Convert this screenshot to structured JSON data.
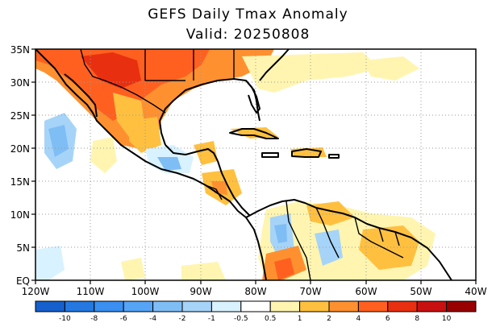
{
  "header": {
    "title": "GEFS Daily Tmax Anomaly",
    "valid": "Valid: 20250808"
  },
  "map": {
    "lat_labels": [
      "35N",
      "30N",
      "25N",
      "20N",
      "15N",
      "10N",
      "5N",
      "EQ"
    ],
    "lon_labels": [
      "120W",
      "110W",
      "100W",
      "90W",
      "80W",
      "70W",
      "60W",
      "50W",
      "40W"
    ]
  },
  "colorbar": {
    "labels": [
      "-10",
      "-8",
      "-6",
      "-4",
      "-2",
      "-1",
      "-0.5",
      "0.5",
      "1",
      "2",
      "4",
      "6",
      "8",
      "10"
    ],
    "colors": [
      "#1560cc",
      "#2478e0",
      "#3a8ff0",
      "#55a4f5",
      "#7fbdf5",
      "#a6d4f8",
      "#d9f2ff",
      "#ffffff",
      "#fff5b0",
      "#ffc040",
      "#ff9030",
      "#ff6020",
      "#e83010",
      "#c81010",
      "#990000"
    ]
  },
  "anomaly_colors": {
    "cool_light": "#d9f2ff",
    "cool_mid": "#a6d4f8",
    "cool_strong": "#7fbdf5",
    "warm_light": "#fff5b0",
    "warm_mid": "#ffc040",
    "warm_strong": "#ff9030",
    "hot": "#ff6020"
  }
}
